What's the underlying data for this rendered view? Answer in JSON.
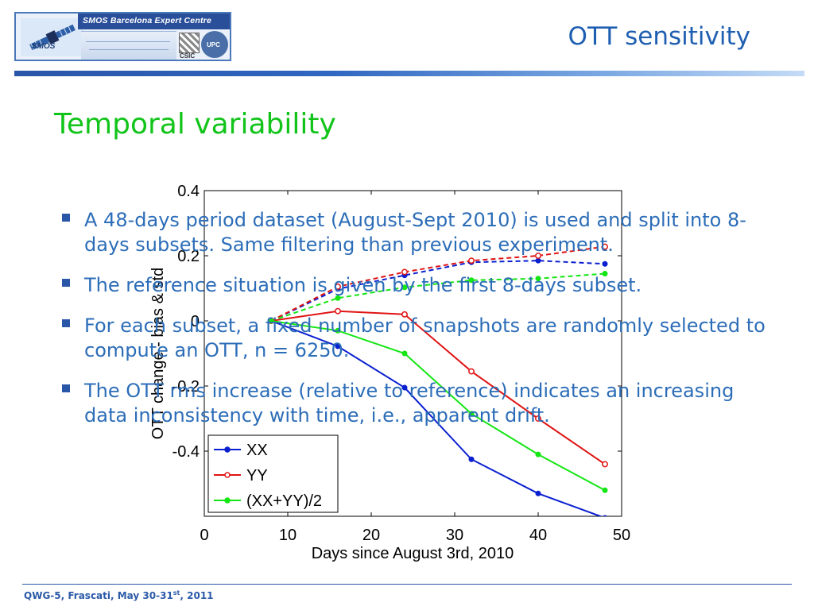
{
  "header": {
    "logo": {
      "title": "SMOS Barcelona Expert Centre",
      "smos_label": "SMOS",
      "csic_label": "CSIC",
      "upc_label": "UPC"
    },
    "page_title": "OTT sensitivity"
  },
  "slide": {
    "heading": "Temporal variability",
    "bullets": [
      "A 48-days period dataset (August-Sept 2010) is used and split into 8-days subsets. Same filtering than previous experiment.",
      "The reference situation is given by the first 8-days subset.",
      "For each subset, a fixed number of snapshots are randomly selected to compute an OTT, n = 6250.",
      "The OTT rms increase (relative to reference) indicates an increasing data inconsistency with time, i.e., apparent drift."
    ]
  },
  "footer": {
    "text_main": "QWG-5, Frascati, May 30-31",
    "text_sup": "st",
    "text_tail": ", 2011"
  },
  "chart_data": {
    "type": "line",
    "xlabel": "Days since August 3rd, 2010",
    "ylabel": "OTT change - bias & std",
    "xlim": [
      0,
      50
    ],
    "ylim": [
      -0.6,
      0.4
    ],
    "xticks": [
      "0",
      "10",
      "20",
      "30",
      "40",
      "50"
    ],
    "yticks": [
      "0.4",
      "0.2",
      "0",
      "-0.2",
      "-0.4"
    ],
    "grid": false,
    "legend_position": "lower-left",
    "x": [
      8,
      16,
      24,
      32,
      40,
      48
    ],
    "series": [
      {
        "name": "XX",
        "color": "#0a1fd0",
        "solid": [
          0,
          -0.078,
          -0.205,
          -0.425,
          -0.53,
          -0.605
        ],
        "dashed": [
          0,
          0.098,
          0.14,
          0.18,
          0.185,
          0.175
        ]
      },
      {
        "name": "YY",
        "color": "#e01414",
        "solid": [
          0,
          0.03,
          0.02,
          -0.155,
          -0.3,
          -0.44
        ],
        "dashed": [
          0,
          0.105,
          0.15,
          0.185,
          0.2,
          0.228
        ]
      },
      {
        "name": "(XX+YY)/2",
        "color": "#14e614",
        "solid": [
          0,
          -0.03,
          -0.1,
          -0.285,
          -0.41,
          -0.52
        ],
        "dashed": [
          0,
          0.07,
          0.103,
          0.125,
          0.13,
          0.145
        ]
      }
    ]
  }
}
